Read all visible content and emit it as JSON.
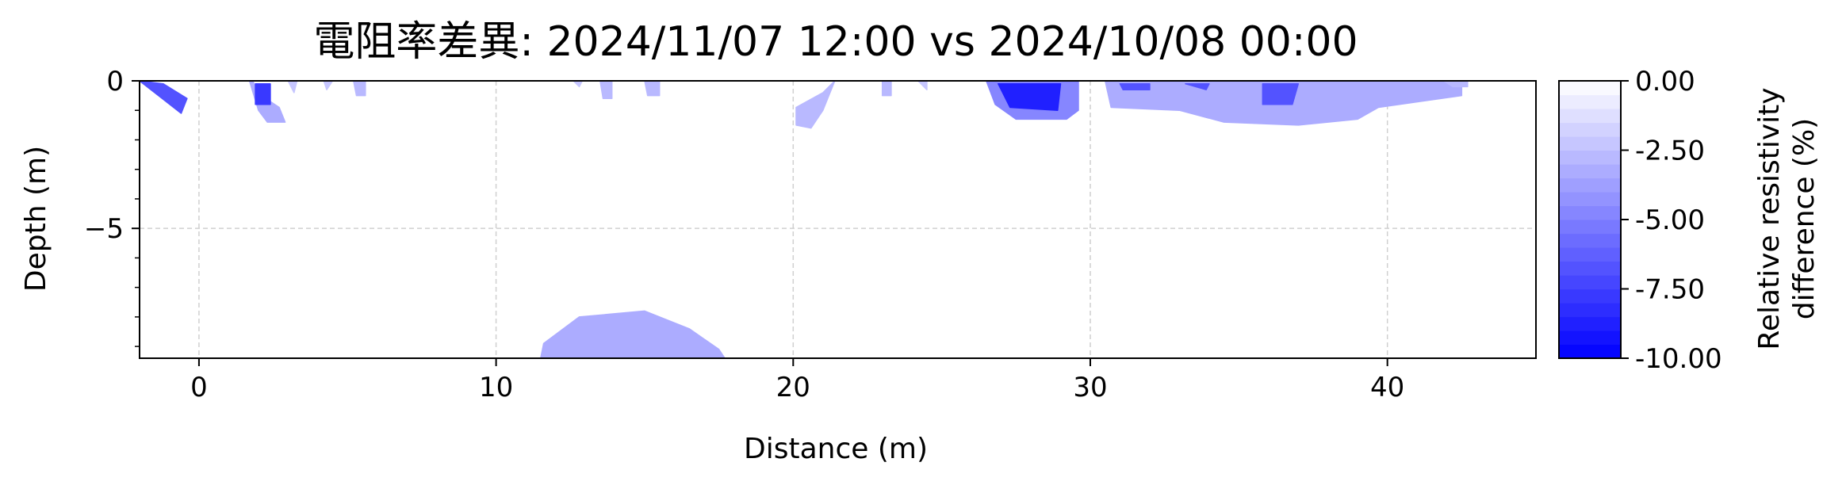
{
  "chart_data": {
    "type": "heatmap",
    "subtype": "filled-contour",
    "title": "電阻率差異: 2024/11/07 12:00 vs 2024/10/08 00:00",
    "xlabel": "Distance (m)",
    "ylabel": "Depth (m)",
    "xlim": [
      -2,
      45
    ],
    "ylim": [
      -9.4,
      0
    ],
    "xticks": [
      0,
      10,
      20,
      30,
      40
    ],
    "xtick_labels": [
      "0",
      "10",
      "20",
      "30",
      "40"
    ],
    "yticks": [
      0,
      -5
    ],
    "ytick_labels": [
      "0",
      "−5"
    ],
    "grid": true,
    "colorbar": {
      "label_lines": [
        "Relative resistivity",
        "difference (%)"
      ],
      "range": [
        -10,
        0
      ],
      "ticks": [
        0,
        -2.5,
        -5,
        -7.5,
        -10
      ],
      "tick_labels": [
        "0.00",
        "-2.50",
        "-5.00",
        "-7.50",
        "-10.00"
      ],
      "levels": 20,
      "color_low": "#0000ff",
      "color_high": "#ffffff"
    },
    "anomalies": [
      {
        "x": [
          -2.0,
          -1.2,
          -0.4,
          -0.6
        ],
        "y": [
          0.0,
          -0.1,
          -0.6,
          -1.1
        ],
        "value": -7.0
      },
      {
        "x": [
          1.7,
          2.0,
          2.3,
          2.9,
          2.7,
          2.1,
          1.8
        ],
        "y": [
          0.0,
          -1.0,
          -1.4,
          -1.4,
          -0.9,
          -0.5,
          0.0
        ],
        "value": -3.5
      },
      {
        "x": [
          1.9,
          2.4,
          2.4,
          1.9
        ],
        "y": [
          -0.1,
          -0.1,
          -0.8,
          -0.8
        ],
        "value": -8.0
      },
      {
        "x": [
          3.0,
          3.3,
          3.2
        ],
        "y": [
          0.0,
          0.0,
          -0.4
        ],
        "value": -2.5
      },
      {
        "x": [
          4.2,
          4.5,
          4.3
        ],
        "y": [
          0.0,
          0.0,
          -0.3
        ],
        "value": -2.5
      },
      {
        "x": [
          5.2,
          5.6,
          5.6,
          5.3
        ],
        "y": [
          0.0,
          0.0,
          -0.5,
          -0.5
        ],
        "value": -3.0
      },
      {
        "x": [
          12.6,
          12.9,
          12.8
        ],
        "y": [
          0.0,
          0.0,
          -0.2
        ],
        "value": -2.5
      },
      {
        "x": [
          13.5,
          13.9,
          13.9,
          13.6
        ],
        "y": [
          0.0,
          0.0,
          -0.6,
          -0.6
        ],
        "value": -3.0
      },
      {
        "x": [
          15.0,
          15.5,
          15.5,
          15.1
        ],
        "y": [
          0.0,
          0.0,
          -0.5,
          -0.5
        ],
        "value": -3.0
      },
      {
        "x": [
          20.1,
          21.0,
          21.4,
          21.0,
          20.6,
          20.1
        ],
        "y": [
          -0.9,
          -0.4,
          0.0,
          -1.0,
          -1.6,
          -1.5
        ],
        "value": -3.0
      },
      {
        "x": [
          23.0,
          23.3,
          23.3,
          23.0
        ],
        "y": [
          0.0,
          0.0,
          -0.5,
          -0.5
        ],
        "value": -3.0
      },
      {
        "x": [
          24.2,
          24.5,
          24.5
        ],
        "y": [
          0.0,
          0.0,
          -0.3
        ],
        "value": -2.5
      },
      {
        "x": [
          26.5,
          29.6,
          29.6,
          29.2,
          27.5,
          26.8
        ],
        "y": [
          0.0,
          0.0,
          -1.0,
          -1.3,
          -1.3,
          -0.8
        ],
        "value": -5.0
      },
      {
        "x": [
          26.9,
          29.0,
          28.9,
          27.3
        ],
        "y": [
          -0.1,
          -0.1,
          -1.0,
          -0.9
        ],
        "value": -9.0
      },
      {
        "x": [
          30.5,
          42.5,
          42.5,
          39.7,
          39.0,
          37.0,
          34.5,
          33.0,
          30.7
        ],
        "y": [
          0.0,
          0.0,
          -0.5,
          -0.9,
          -1.3,
          -1.5,
          -1.4,
          -1.0,
          -0.9
        ],
        "value": -3.5
      },
      {
        "x": [
          31.0,
          32.0,
          32.0,
          31.1
        ],
        "y": [
          -0.1,
          -0.1,
          -0.3,
          -0.3
        ],
        "value": -7.0
      },
      {
        "x": [
          33.2,
          34.0,
          33.9
        ],
        "y": [
          -0.1,
          -0.1,
          -0.3
        ],
        "value": -7.0
      },
      {
        "x": [
          35.8,
          37.0,
          36.8,
          35.8
        ],
        "y": [
          -0.1,
          -0.1,
          -0.8,
          -0.8
        ],
        "value": -7.0
      },
      {
        "x": [
          41.9,
          42.7,
          42.7,
          42.2
        ],
        "y": [
          0.0,
          0.0,
          -0.2,
          -0.2
        ],
        "value": -3.0
      },
      {
        "x": [
          11.6,
          12.8,
          15.0,
          16.5,
          17.5,
          17.7,
          11.5
        ],
        "y": [
          -8.9,
          -8.0,
          -7.8,
          -8.4,
          -9.1,
          -9.4,
          -9.4
        ],
        "value": -3.5
      }
    ]
  }
}
